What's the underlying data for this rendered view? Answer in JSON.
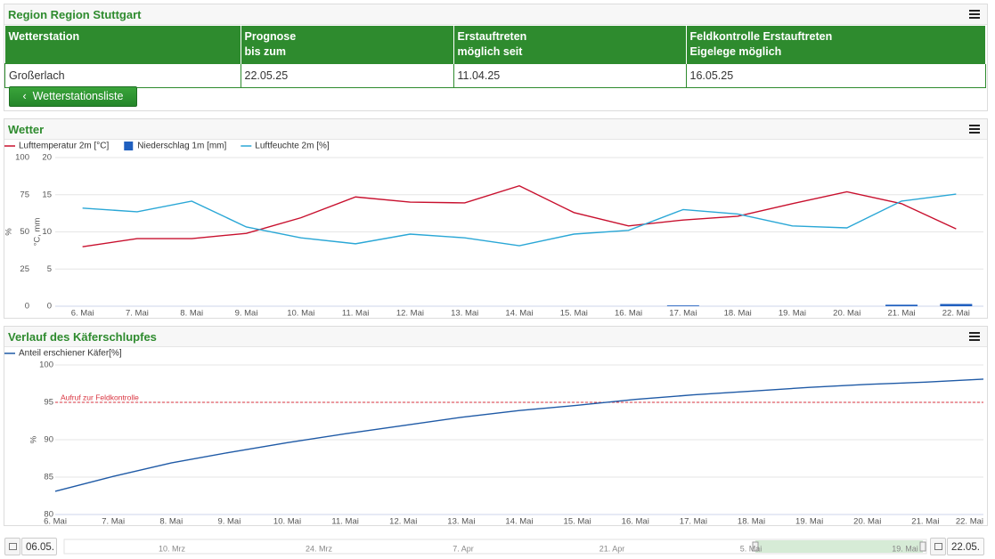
{
  "header": {
    "title": "Region Region Stuttgart"
  },
  "table": {
    "columns": [
      [
        "Wetterstation"
      ],
      [
        "Prognose",
        "bis zum"
      ],
      [
        "Erstauftreten",
        "möglich seit"
      ],
      [
        "Feldkontrolle Erstauftreten",
        "Eigelege möglich"
      ]
    ],
    "rows": [
      [
        "Großerlach",
        "22.05.25",
        "11.04.25",
        "16.05.25"
      ]
    ]
  },
  "button": "Wetterstationsliste",
  "chart_data": [
    {
      "type": "line",
      "title": "Wetter",
      "categories": [
        "6. Mai",
        "7. Mai",
        "8. Mai",
        "9. Mai",
        "10. Mai",
        "11. Mai",
        "12. Mai",
        "13. Mai",
        "14. Mai",
        "15. Mai",
        "16. Mai",
        "17. Mai",
        "18. Mai",
        "19. Mai",
        "20. Mai",
        "21. Mai",
        "22. Mai"
      ],
      "y_label": "%",
      "y2_label": "°C, mm",
      "ylim": [
        0,
        100
      ],
      "yticks": [
        0,
        25,
        50,
        75,
        100
      ],
      "y2lim": [
        0,
        20
      ],
      "y2ticks": [
        0,
        5,
        10,
        15,
        20
      ],
      "grid": true,
      "series": [
        {
          "name": "Lufttemperatur 2m [°C]",
          "type": "line",
          "color": "#c8102e",
          "axis": "y2",
          "values": [
            8.0,
            9.1,
            9.1,
            9.8,
            11.9,
            14.7,
            14.0,
            13.9,
            16.2,
            12.6,
            10.8,
            11.6,
            12.1,
            13.8,
            15.4,
            13.8,
            10.4
          ]
        },
        {
          "name": "Niederschlag 1m [mm]",
          "type": "bar",
          "color": "#1f5fbf",
          "axis": "y2",
          "values": [
            0,
            0,
            0,
            0,
            0,
            0,
            0,
            0,
            0,
            0,
            0,
            0.1,
            0,
            0,
            0,
            0.2,
            0.3
          ]
        },
        {
          "name": "Luftfeuchte 2m [%]",
          "type": "line",
          "color": "#2aa7d6",
          "values": [
            66,
            63.5,
            70.7,
            53.3,
            46,
            42,
            48.5,
            46,
            40.7,
            48.5,
            51,
            65,
            62,
            54,
            52.7,
            70.7,
            75.4
          ]
        }
      ]
    },
    {
      "type": "line",
      "title": "Verlauf des Käferschlupfes",
      "categories": [
        "6. Mai",
        "7. Mai",
        "8. Mai",
        "9. Mai",
        "10. Mai",
        "11. Mai",
        "12. Mai",
        "13. Mai",
        "14. Mai",
        "15. Mai",
        "16. Mai",
        "17. Mai",
        "18. Mai",
        "19. Mai",
        "20. Mai",
        "21. Mai",
        "22. Mai"
      ],
      "y_label": "%",
      "ylim": [
        80,
        100
      ],
      "yticks": [
        80,
        85,
        90,
        95,
        100
      ],
      "grid": true,
      "plot_lines": [
        {
          "value": 95,
          "label": "Aufruf zur Feldkontrolle",
          "color": "#d9333f"
        }
      ],
      "series": [
        {
          "name": "Anteil erschiener Käfer[%]",
          "type": "line",
          "color": "#1f5aa6",
          "values": [
            83.1,
            85.1,
            86.9,
            88.3,
            89.6,
            90.8,
            91.9,
            93.0,
            93.9,
            94.6,
            95.4,
            96.0,
            96.5,
            97.0,
            97.4,
            97.7,
            98.1
          ]
        }
      ]
    }
  ],
  "navigator": {
    "from": "06.05.",
    "to": "22.05.",
    "labels": [
      "10. Mrz",
      "24. Mrz",
      "7. Apr",
      "21. Apr",
      "5. Mai",
      "19. Mai"
    ]
  }
}
